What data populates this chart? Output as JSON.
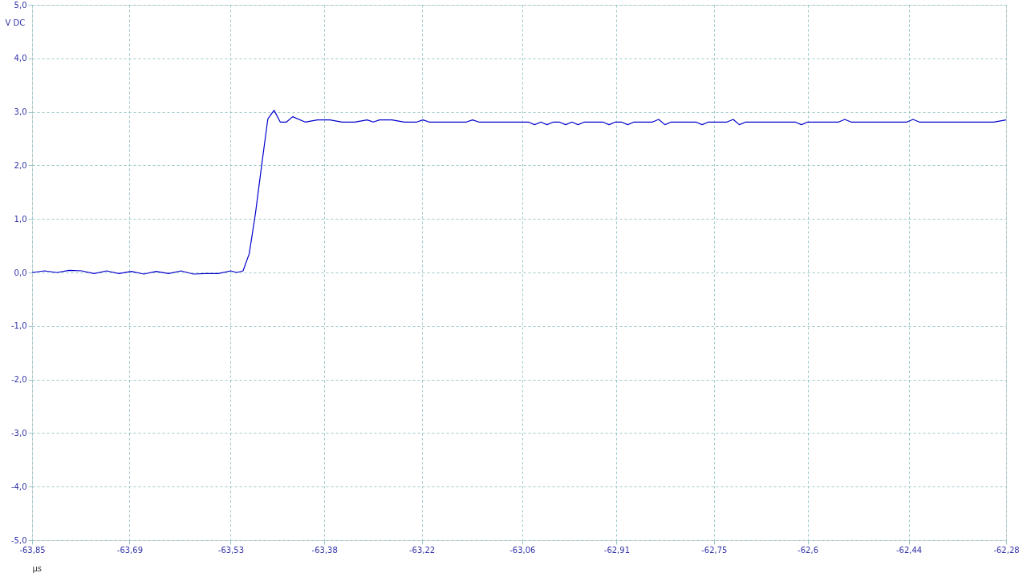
{
  "chart_data": {
    "type": "line",
    "xlabel": "µs",
    "ylabel": "V DC",
    "grid": true,
    "line_style": "solid",
    "marker": "none",
    "xlim": [
      -63.85,
      -62.28
    ],
    "ylim": [
      -5.0,
      5.0
    ],
    "xticks": [
      {
        "value": -63.85,
        "label": "-63,85"
      },
      {
        "value": -63.693,
        "label": "-63,69"
      },
      {
        "value": -63.53,
        "label": "-63,53"
      },
      {
        "value": -63.379,
        "label": "-63,38"
      },
      {
        "value": -63.222,
        "label": "-63,22"
      },
      {
        "value": -63.06,
        "label": "-63,06"
      },
      {
        "value": -62.908,
        "label": "-62,91"
      },
      {
        "value": -62.751,
        "label": "-62,75"
      },
      {
        "value": -62.6,
        "label": "-62,6"
      },
      {
        "value": -62.437,
        "label": "-62,44"
      },
      {
        "value": -62.28,
        "label": "-62,28"
      }
    ],
    "yticks": [
      {
        "value": -5,
        "label": "-5,0"
      },
      {
        "value": -4,
        "label": "-4,0"
      },
      {
        "value": -3,
        "label": "-3,0"
      },
      {
        "value": -2,
        "label": "-2,0"
      },
      {
        "value": -1,
        "label": "-1,0"
      },
      {
        "value": 0,
        "label": "0,0"
      },
      {
        "value": 1,
        "label": "1,0"
      },
      {
        "value": 2,
        "label": "2,0"
      },
      {
        "value": 3,
        "label": "3,0"
      },
      {
        "value": 4,
        "label": "4,0"
      },
      {
        "value": 5,
        "label": "5,0"
      }
    ],
    "series": [
      {
        "color": "#0000cc",
        "x": [
          -63.85,
          -63.83,
          -63.81,
          -63.79,
          -63.77,
          -63.75,
          -63.73,
          -63.71,
          -63.69,
          -63.67,
          -63.65,
          -63.63,
          -63.61,
          -63.59,
          -63.57,
          -63.55,
          -63.53,
          -63.52,
          -63.51,
          -63.5,
          -63.49,
          -63.48,
          -63.47,
          -63.46,
          -63.45,
          -63.44,
          -63.43,
          -63.41,
          -63.39,
          -63.37,
          -63.35,
          -63.33,
          -63.31,
          -63.3,
          -63.29,
          -63.27,
          -63.25,
          -63.23,
          -63.22,
          -63.21,
          -63.15,
          -63.14,
          -63.13,
          -63.05,
          -63.04,
          -63.03,
          -63.02,
          -63.01,
          -63.0,
          -62.99,
          -62.98,
          -62.97,
          -62.96,
          -62.93,
          -62.92,
          -62.91,
          -62.9,
          -62.89,
          -62.88,
          -62.85,
          -62.84,
          -62.83,
          -62.82,
          -62.78,
          -62.77,
          -62.76,
          -62.73,
          -62.72,
          -62.71,
          -62.7,
          -62.62,
          -62.61,
          -62.6,
          -62.55,
          -62.54,
          -62.53,
          -62.44,
          -62.43,
          -62.42,
          -62.3,
          -62.28
        ],
        "values": [
          0.0,
          0.03,
          0.0,
          0.04,
          0.03,
          -0.02,
          0.03,
          -0.02,
          0.02,
          -0.03,
          0.02,
          -0.02,
          0.03,
          -0.03,
          -0.02,
          -0.02,
          0.03,
          0.0,
          0.03,
          0.35,
          1.1,
          2.0,
          2.87,
          3.03,
          2.81,
          2.81,
          2.91,
          2.81,
          2.85,
          2.85,
          2.81,
          2.81,
          2.85,
          2.81,
          2.85,
          2.85,
          2.81,
          2.81,
          2.85,
          2.81,
          2.81,
          2.85,
          2.81,
          2.81,
          2.76,
          2.81,
          2.76,
          2.81,
          2.81,
          2.76,
          2.81,
          2.76,
          2.81,
          2.81,
          2.76,
          2.81,
          2.81,
          2.76,
          2.81,
          2.81,
          2.86,
          2.76,
          2.81,
          2.81,
          2.76,
          2.81,
          2.81,
          2.86,
          2.76,
          2.81,
          2.81,
          2.76,
          2.81,
          2.81,
          2.86,
          2.81,
          2.81,
          2.86,
          2.81,
          2.81,
          2.85
        ]
      }
    ]
  }
}
